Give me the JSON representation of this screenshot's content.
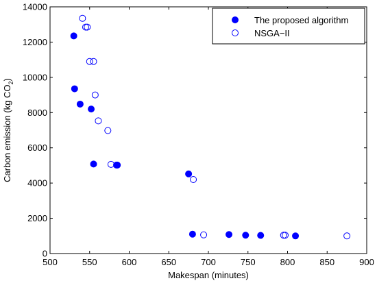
{
  "chart_data": {
    "type": "scatter",
    "xlabel": "Makespan (minutes)",
    "ylabel_parts": {
      "main": "Carbon emission (kg CO",
      "sub": "2",
      "close": ")"
    },
    "xlim": [
      500,
      900
    ],
    "ylim": [
      0,
      14000
    ],
    "xticks": [
      500,
      550,
      600,
      650,
      700,
      750,
      800,
      850,
      900
    ],
    "yticks": [
      0,
      2000,
      4000,
      6000,
      8000,
      10000,
      12000,
      14000
    ],
    "grid": false,
    "legend_position": "top-right",
    "colors": {
      "marker": "#0000ff",
      "axis": "#000000",
      "background": "#ffffff"
    },
    "series": [
      {
        "name": "The proposed algorithm",
        "marker": "filled-circle",
        "points": [
          [
            530,
            12350
          ],
          [
            531,
            9350
          ],
          [
            538,
            8480
          ],
          [
            552,
            8200
          ],
          [
            555,
            5080
          ],
          [
            585,
            5020
          ],
          [
            675,
            4520
          ],
          [
            680,
            1100
          ],
          [
            726,
            1080
          ],
          [
            747,
            1040
          ],
          [
            766,
            1030
          ],
          [
            810,
            1000
          ]
        ]
      },
      {
        "name": "NSGA−II",
        "marker": "open-circle",
        "points": [
          [
            541,
            13350
          ],
          [
            545,
            12850
          ],
          [
            547,
            12850
          ],
          [
            550,
            10900
          ],
          [
            555,
            10900
          ],
          [
            557,
            9000
          ],
          [
            561,
            7530
          ],
          [
            573,
            6980
          ],
          [
            577,
            5060
          ],
          [
            584,
            5020
          ],
          [
            681,
            4200
          ],
          [
            694,
            1060
          ],
          [
            795,
            1040
          ],
          [
            797,
            1040
          ],
          [
            875,
            1000
          ]
        ]
      }
    ]
  }
}
